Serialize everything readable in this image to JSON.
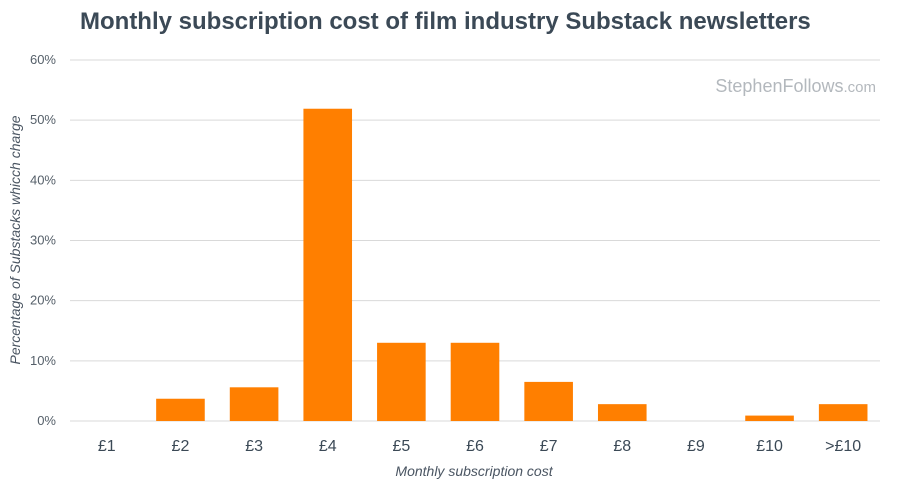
{
  "title": "Monthly subscription cost of film industry Substack newsletters",
  "watermark": {
    "main": "StephenFollows",
    "suffix": ".com"
  },
  "colors": {
    "bar": "#ff7f00",
    "grid": "#d9d9d9",
    "title": "#3b4956"
  },
  "chart_data": {
    "type": "bar",
    "title": "Monthly subscription cost of film industry Substack newsletters",
    "xlabel": "Monthly subscription cost",
    "ylabel": "Percentage of Substacks whicch charge",
    "categories": [
      "£1",
      "£2",
      "£3",
      "£4",
      "£5",
      "£6",
      "£7",
      "£8",
      "£9",
      "£10",
      ">£10"
    ],
    "values": [
      0,
      3.7,
      5.6,
      51.9,
      13.0,
      13.0,
      6.5,
      2.8,
      0,
      0.9,
      2.8
    ],
    "ylim": [
      0,
      60
    ],
    "yticks": [
      0,
      10,
      20,
      30,
      40,
      50,
      60
    ],
    "ytick_labels": [
      "0%",
      "10%",
      "20%",
      "30%",
      "40%",
      "50%",
      "60%"
    ],
    "grid": true,
    "legend": "none"
  }
}
